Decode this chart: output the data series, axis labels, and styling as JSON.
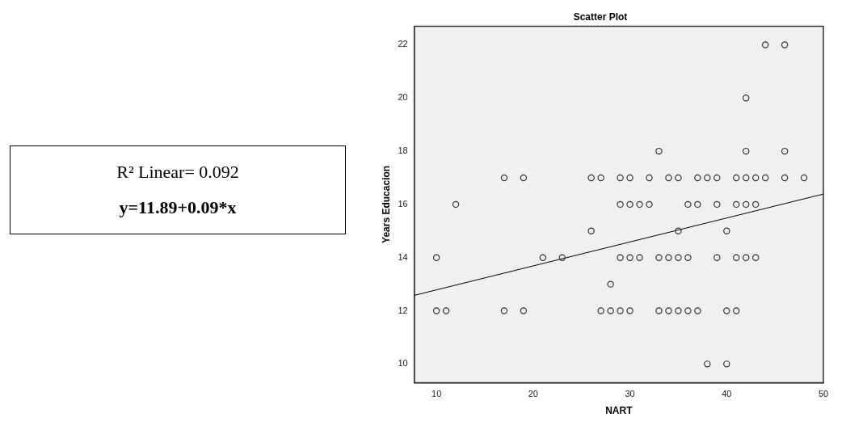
{
  "chart_data": {
    "type": "scatter",
    "title": "Scatter Plot",
    "xlabel": "NART",
    "ylabel": "Years Educacion",
    "annotations": [
      "R² Linear= 0.092",
      "y=11.89+0.09*x"
    ],
    "xlim": [
      7.7,
      50
    ],
    "ylim": [
      9.3,
      22.7
    ],
    "xticks": [
      10,
      20,
      30,
      40,
      50
    ],
    "yticks": [
      10,
      12,
      14,
      16,
      18,
      20,
      22
    ],
    "grid": false,
    "legend": false,
    "marker": "circle",
    "series": [
      {
        "color": "#333333",
        "x": [
          44,
          46,
          42,
          33,
          42,
          46,
          17,
          19,
          26,
          27,
          29,
          30,
          32,
          34,
          35,
          37,
          38,
          39,
          41,
          42,
          43,
          44,
          46,
          48,
          12,
          29,
          30,
          31,
          32,
          36,
          37,
          39,
          41,
          42,
          43,
          26,
          35,
          40,
          10,
          21,
          23,
          29,
          30,
          31,
          33,
          34,
          35,
          36,
          39,
          41,
          42,
          43,
          28,
          10,
          11,
          17,
          19,
          27,
          28,
          29,
          30,
          33,
          34,
          35,
          36,
          37,
          40,
          41,
          38,
          40
        ],
        "values": [
          22,
          22,
          20,
          18,
          18,
          18,
          17,
          17,
          17,
          17,
          17,
          17,
          17,
          17,
          17,
          17,
          17,
          17,
          17,
          17,
          17,
          17,
          17,
          17,
          16,
          16,
          16,
          16,
          16,
          16,
          16,
          16,
          16,
          16,
          16,
          15,
          15,
          15,
          14,
          14,
          14,
          14,
          14,
          14,
          14,
          14,
          14,
          14,
          14,
          14,
          14,
          14,
          13,
          12,
          12,
          12,
          12,
          12,
          12,
          12,
          12,
          12,
          12,
          12,
          12,
          12,
          12,
          12,
          10,
          10
        ]
      },
      {
        "type": "line",
        "color": "#000000",
        "marker": "none",
        "x": [
          7.7,
          50
        ],
        "values": [
          12.58,
          16.39
        ]
      }
    ]
  }
}
